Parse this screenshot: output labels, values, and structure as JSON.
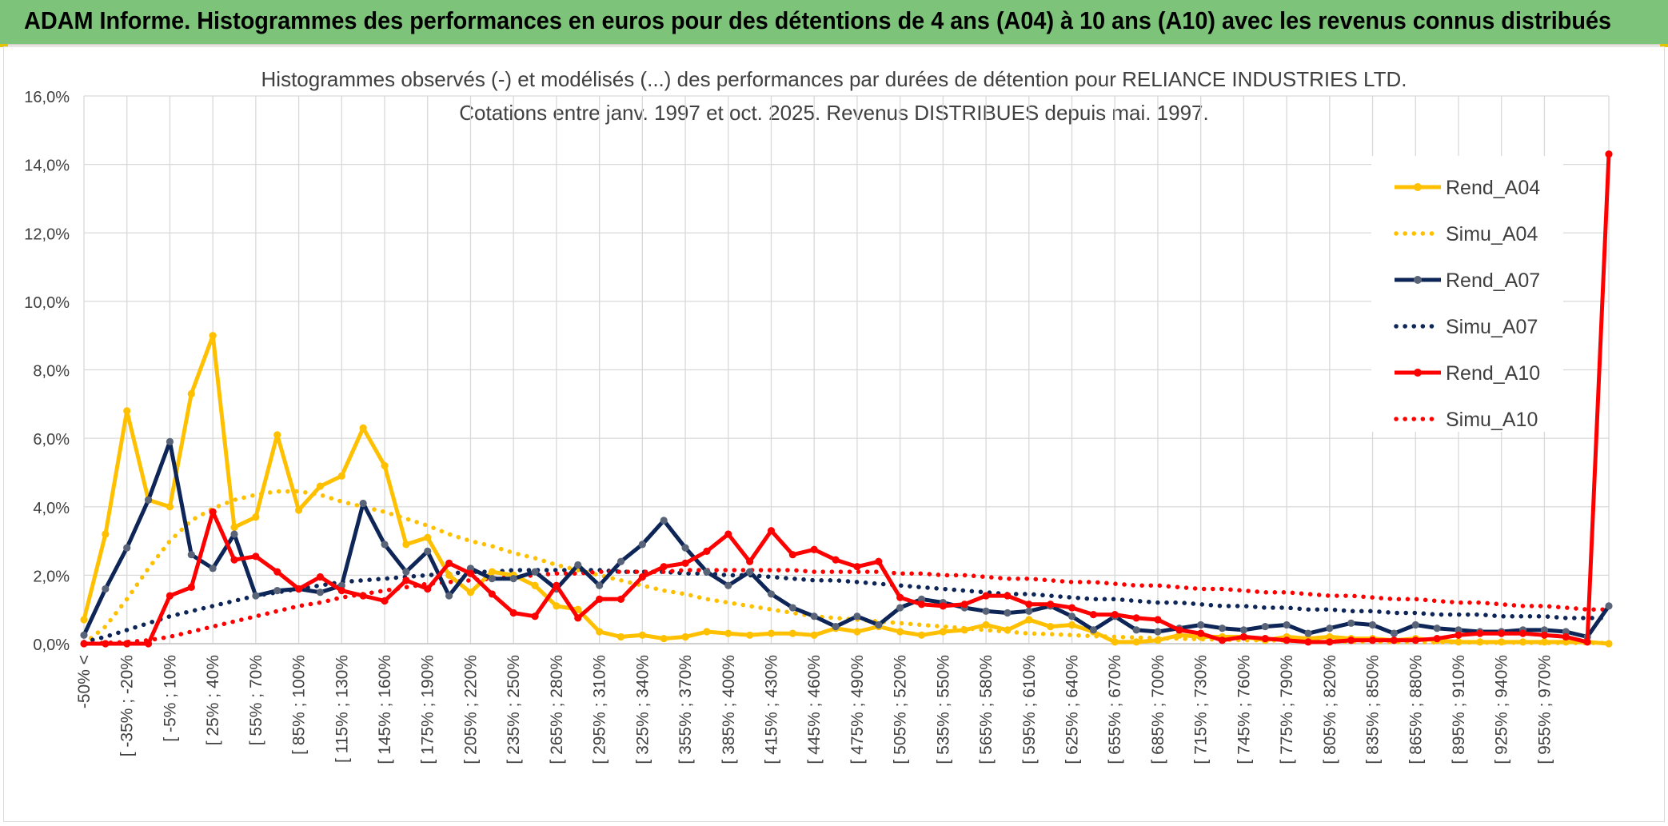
{
  "banner": {
    "title": "ADAM Informe. Histogrammes des performances en euros pour des détentions de 4 ans (A04) à 10 ans (A10) avec les revenus connus distribués"
  },
  "colors": {
    "banner_bg": "#7dc47a",
    "A04": "#ffc000",
    "A07": "#0e2557",
    "A07_marker": "#5a6478",
    "A10": "#ff0000",
    "grid": "#d9d9d9",
    "axis_text": "#404040"
  },
  "chart_data": {
    "type": "line",
    "title": "Histogrammes observés (-) et modélisés (...) des performances par durées de détention pour RELIANCE INDUSTRIES LTD.",
    "subtitle": "Cotations entre janv. 1997 et oct. 2025. Revenus DISTRIBUES depuis mai. 1997.",
    "xlabel": "",
    "ylabel": "",
    "ylim": [
      0,
      16
    ],
    "yticks": [
      "0,0%",
      "2,0%",
      "4,0%",
      "6,0%",
      "8,0%",
      "10,0%",
      "12,0%",
      "14,0%",
      "16,0%"
    ],
    "grid": true,
    "legend_position": "right",
    "x_labels": [
      "-50% <",
      "[ -35% ; -20%",
      "[ -5% ; 10%",
      "[ 25% ; 40%",
      "[ 55% ; 70%",
      "[ 85% ; 100%",
      "[ 115% ; 130%",
      "[ 145% ; 160%",
      "[ 175% ; 190%",
      "[ 205% ; 220%",
      "[ 235% ; 250%",
      "[ 265% ; 280%",
      "[ 295% ; 310%",
      "[ 325% ; 340%",
      "[ 355% ; 370%",
      "[ 385% ; 400%",
      "[ 415% ; 430%",
      "[ 445% ; 460%",
      "[ 475% ; 490%",
      "[ 505% ; 520%",
      "[ 535% ; 550%",
      "[ 565% ; 580%",
      "[ 595% ; 610%",
      "[ 625% ; 640%",
      "[ 655% ; 670%",
      "[ 685% ; 700%",
      "[ 715% ; 730%",
      "[ 745% ; 760%",
      "[ 775% ; 790%",
      "[ 805% ; 820%",
      "[ 835% ; 850%",
      "[ 865% ; 880%",
      "[ 895% ; 910%",
      "[ 925% ; 940%",
      "[ 955% ; 970%"
    ],
    "series": [
      {
        "name": "Rend_A04",
        "style": "solid",
        "color": "#ffc000",
        "values": [
          0.7,
          3.2,
          6.8,
          4.2,
          4.0,
          7.3,
          9.0,
          3.4,
          3.7,
          6.1,
          3.9,
          4.6,
          4.9,
          6.3,
          5.2,
          2.9,
          3.1,
          2.0,
          1.5,
          2.1,
          2.0,
          1.7,
          1.1,
          1.0,
          0.35,
          0.2,
          0.25,
          0.15,
          0.2,
          0.35,
          0.3,
          0.25,
          0.3,
          0.3,
          0.25,
          0.45,
          0.35,
          0.5,
          0.35,
          0.25,
          0.35,
          0.4,
          0.55,
          0.4,
          0.7,
          0.5,
          0.55,
          0.35,
          0.05,
          0.05,
          0.1,
          0.25,
          0.2,
          0.2,
          0.2,
          0.1,
          0.2,
          0.15,
          0.2,
          0.15,
          0.15,
          0.1,
          0.15,
          0.1,
          0.05,
          0.05,
          0.05,
          0.05,
          0.05,
          0.05,
          0.05,
          0.0
        ]
      },
      {
        "name": "Simu_A04",
        "style": "dotted",
        "color": "#ffc000",
        "values": [
          0.0,
          0.5,
          1.3,
          2.2,
          3.0,
          3.6,
          3.95,
          4.2,
          4.35,
          4.45,
          4.45,
          4.35,
          4.15,
          4.0,
          3.85,
          3.65,
          3.45,
          3.2,
          3.0,
          2.85,
          2.65,
          2.5,
          2.3,
          2.15,
          2.0,
          1.85,
          1.7,
          1.55,
          1.45,
          1.3,
          1.2,
          1.1,
          1.0,
          0.9,
          0.8,
          0.75,
          0.7,
          0.65,
          0.6,
          0.55,
          0.5,
          0.45,
          0.4,
          0.35,
          0.3,
          0.28,
          0.25,
          0.22,
          0.2,
          0.18,
          0.16,
          0.15,
          0.13,
          0.12,
          0.1,
          0.1,
          0.09,
          0.08,
          0.07,
          0.06,
          0.06,
          0.05,
          0.05,
          0.04,
          0.04,
          0.03,
          0.03,
          0.03,
          0.02,
          0.02,
          0.02,
          0.02
        ]
      },
      {
        "name": "Rend_A07",
        "style": "solid",
        "color": "#0e2557",
        "values": [
          0.25,
          1.6,
          2.8,
          4.2,
          5.9,
          2.6,
          2.2,
          3.2,
          1.4,
          1.55,
          1.6,
          1.5,
          1.7,
          4.1,
          2.9,
          2.1,
          2.7,
          1.4,
          2.2,
          1.9,
          1.9,
          2.1,
          1.6,
          2.3,
          1.7,
          2.4,
          2.9,
          3.6,
          2.8,
          2.1,
          1.7,
          2.1,
          1.45,
          1.05,
          0.8,
          0.5,
          0.8,
          0.55,
          1.05,
          1.3,
          1.2,
          1.05,
          0.95,
          0.9,
          0.95,
          1.1,
          0.8,
          0.4,
          0.8,
          0.4,
          0.35,
          0.45,
          0.55,
          0.45,
          0.4,
          0.5,
          0.55,
          0.3,
          0.45,
          0.6,
          0.55,
          0.3,
          0.55,
          0.45,
          0.4,
          0.35,
          0.35,
          0.4,
          0.4,
          0.35,
          0.2,
          1.1
        ]
      },
      {
        "name": "Simu_A07",
        "style": "dotted",
        "color": "#0e2557",
        "values": [
          0.05,
          0.2,
          0.4,
          0.6,
          0.8,
          0.95,
          1.1,
          1.25,
          1.4,
          1.5,
          1.6,
          1.7,
          1.8,
          1.85,
          1.9,
          1.95,
          2.0,
          2.05,
          2.1,
          2.1,
          2.15,
          2.15,
          2.15,
          2.15,
          2.15,
          2.1,
          2.1,
          2.1,
          2.05,
          2.05,
          2.0,
          2.0,
          1.95,
          1.9,
          1.85,
          1.85,
          1.8,
          1.75,
          1.7,
          1.65,
          1.6,
          1.55,
          1.5,
          1.45,
          1.45,
          1.4,
          1.35,
          1.3,
          1.3,
          1.25,
          1.2,
          1.2,
          1.15,
          1.1,
          1.1,
          1.05,
          1.05,
          1.0,
          1.0,
          0.95,
          0.95,
          0.9,
          0.9,
          0.85,
          0.85,
          0.85,
          0.8,
          0.8,
          0.8,
          0.75,
          0.75,
          0.75
        ]
      },
      {
        "name": "Rend_A10",
        "style": "solid",
        "color": "#ff0000",
        "values": [
          0.0,
          0.0,
          0.0,
          0.0,
          1.4,
          1.65,
          3.85,
          2.45,
          2.55,
          2.1,
          1.6,
          1.95,
          1.55,
          1.4,
          1.25,
          1.85,
          1.6,
          2.35,
          2.05,
          1.45,
          0.9,
          0.8,
          1.7,
          0.75,
          1.3,
          1.3,
          1.95,
          2.25,
          2.35,
          2.7,
          3.2,
          2.4,
          3.3,
          2.6,
          2.75,
          2.45,
          2.25,
          2.4,
          1.35,
          1.15,
          1.1,
          1.15,
          1.4,
          1.4,
          1.15,
          1.15,
          1.05,
          0.85,
          0.85,
          0.75,
          0.7,
          0.4,
          0.3,
          0.1,
          0.2,
          0.15,
          0.1,
          0.05,
          0.05,
          0.1,
          0.1,
          0.1,
          0.1,
          0.15,
          0.25,
          0.3,
          0.3,
          0.3,
          0.25,
          0.2,
          0.05,
          14.3
        ]
      },
      {
        "name": "Simu_A10",
        "style": "dotted",
        "color": "#ff0000",
        "values": [
          0.0,
          0.02,
          0.05,
          0.1,
          0.2,
          0.35,
          0.5,
          0.65,
          0.8,
          0.95,
          1.1,
          1.2,
          1.35,
          1.45,
          1.55,
          1.65,
          1.75,
          1.8,
          1.85,
          1.9,
          1.95,
          2.0,
          2.05,
          2.05,
          2.1,
          2.1,
          2.1,
          2.1,
          2.15,
          2.15,
          2.15,
          2.15,
          2.15,
          2.15,
          2.1,
          2.1,
          2.1,
          2.1,
          2.05,
          2.05,
          2.0,
          2.0,
          1.95,
          1.9,
          1.9,
          1.85,
          1.8,
          1.8,
          1.75,
          1.7,
          1.7,
          1.65,
          1.6,
          1.6,
          1.55,
          1.5,
          1.5,
          1.45,
          1.4,
          1.4,
          1.35,
          1.3,
          1.3,
          1.25,
          1.2,
          1.2,
          1.15,
          1.1,
          1.1,
          1.05,
          1.0,
          1.0
        ]
      }
    ]
  }
}
